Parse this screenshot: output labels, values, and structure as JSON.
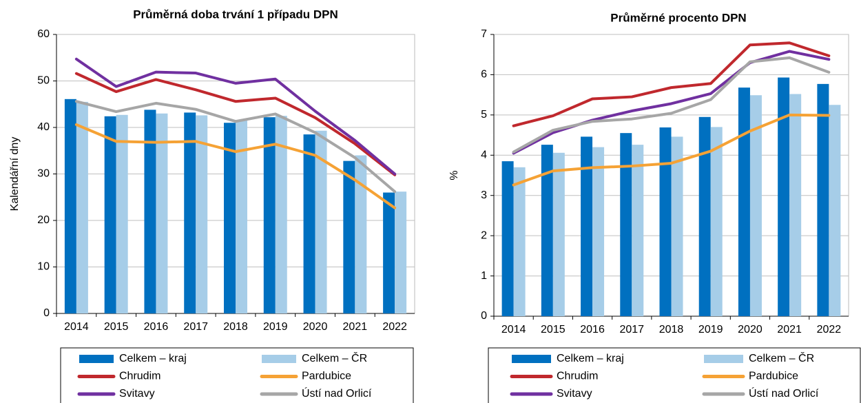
{
  "chart_data": [
    {
      "type": "bar",
      "title": "Průměrná doba trvání 1 případu DPN",
      "y_label": "Kalendářní dny",
      "categories": [
        "2014",
        "2015",
        "2016",
        "2017",
        "2018",
        "2019",
        "2020",
        "2021",
        "2022"
      ],
      "ylim": [
        0,
        60
      ],
      "yticks": [
        0,
        10,
        20,
        30,
        40,
        50,
        60
      ],
      "grid": true,
      "legend": "bottom",
      "series": [
        {
          "name": "Celkem – kraj",
          "type": "bar",
          "color": "#0070c0",
          "values": [
            46.1,
            42.4,
            43.8,
            43.2,
            41.0,
            42.2,
            38.5,
            32.8,
            26.0
          ]
        },
        {
          "name": "Celkem – ČR",
          "type": "bar",
          "color": "#a6cde8",
          "values": [
            45.5,
            42.7,
            43.0,
            42.6,
            41.5,
            42.5,
            39.3,
            34.0,
            26.2
          ]
        },
        {
          "name": "Chrudim",
          "type": "line",
          "color": "#c0282d",
          "values": [
            51.6,
            47.7,
            50.3,
            48.1,
            45.6,
            46.3,
            42.1,
            36.5,
            29.8
          ]
        },
        {
          "name": "Pardubice",
          "type": "line",
          "color": "#f5a235",
          "values": [
            40.6,
            37.0,
            36.8,
            37.0,
            34.8,
            36.4,
            34.0,
            28.7,
            22.7
          ]
        },
        {
          "name": "Svitavy",
          "type": "line",
          "color": "#7030a0",
          "values": [
            54.7,
            48.8,
            51.9,
            51.7,
            49.5,
            50.4,
            43.5,
            37.2,
            30.0
          ]
        },
        {
          "name": "Ústí nad Orlicí",
          "type": "line",
          "color": "#a6a6a6",
          "values": [
            45.6,
            43.4,
            45.2,
            43.9,
            41.3,
            42.9,
            38.9,
            33.5,
            26.2
          ]
        }
      ]
    },
    {
      "type": "bar",
      "title": "Průměrné procento DPN",
      "y_label": "%",
      "categories": [
        "2014",
        "2015",
        "2016",
        "2017",
        "2018",
        "2019",
        "2020",
        "2021",
        "2022"
      ],
      "ylim": [
        0,
        7
      ],
      "yticks": [
        0,
        1,
        2,
        3,
        4,
        5,
        6,
        7
      ],
      "grid": true,
      "legend": "bottom",
      "series": [
        {
          "name": "Celkem – kraj",
          "type": "bar",
          "color": "#0070c0",
          "values": [
            3.85,
            4.26,
            4.46,
            4.55,
            4.69,
            4.95,
            5.68,
            5.93,
            5.77
          ]
        },
        {
          "name": "Celkem – ČR",
          "type": "bar",
          "color": "#a6cde8",
          "values": [
            3.7,
            4.06,
            4.2,
            4.26,
            4.46,
            4.7,
            5.49,
            5.52,
            5.25
          ]
        },
        {
          "name": "Chrudim",
          "type": "line",
          "color": "#c0282d",
          "values": [
            4.73,
            4.98,
            5.4,
            5.45,
            5.68,
            5.78,
            6.74,
            6.79,
            6.47
          ]
        },
        {
          "name": "Pardubice",
          "type": "line",
          "color": "#f5a235",
          "values": [
            3.26,
            3.61,
            3.69,
            3.73,
            3.8,
            4.1,
            4.6,
            5.0,
            4.99
          ]
        },
        {
          "name": "Svitavy",
          "type": "line",
          "color": "#7030a0",
          "values": [
            4.05,
            4.56,
            4.87,
            5.1,
            5.28,
            5.53,
            6.3,
            6.58,
            6.38
          ]
        },
        {
          "name": "Ústí nad Orlicí",
          "type": "line",
          "color": "#a6a6a6",
          "values": [
            4.08,
            4.62,
            4.84,
            4.9,
            5.04,
            5.38,
            6.32,
            6.42,
            6.06
          ]
        }
      ]
    }
  ]
}
